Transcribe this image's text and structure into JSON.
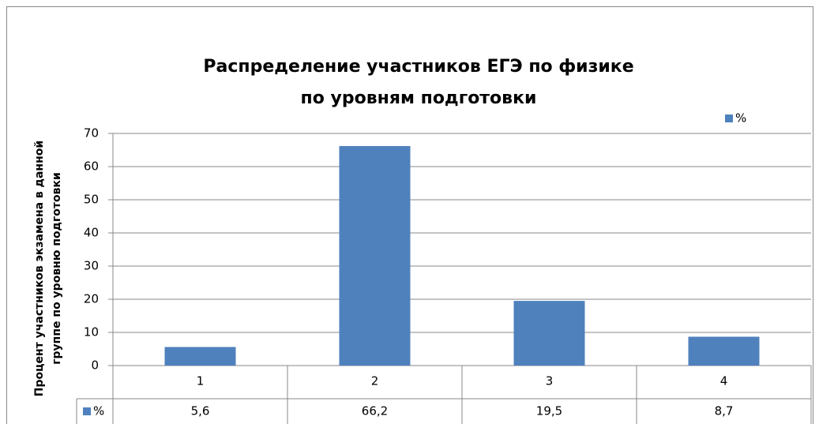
{
  "chart_data": {
    "type": "bar",
    "title": [
      "Распределение участников  ЕГЭ по физике",
      "по уровням подготовки"
    ],
    "y_label": [
      "Процент участников экзамена в данной",
      "группе по уровню подготовки"
    ],
    "categories": [
      "1",
      "2",
      "3",
      "4"
    ],
    "series": [
      {
        "name": "%",
        "color": "#4f81bd",
        "values": [
          5.6,
          66.2,
          19.5,
          8.7
        ],
        "value_labels": [
          "5,6",
          "66,2",
          "19,5",
          "8,7"
        ]
      }
    ],
    "ylim": [
      0,
      70
    ],
    "yticks": [
      0,
      10,
      20,
      30,
      40,
      50,
      60,
      70
    ],
    "grid": true,
    "legend": "top-right",
    "data_table": true
  }
}
